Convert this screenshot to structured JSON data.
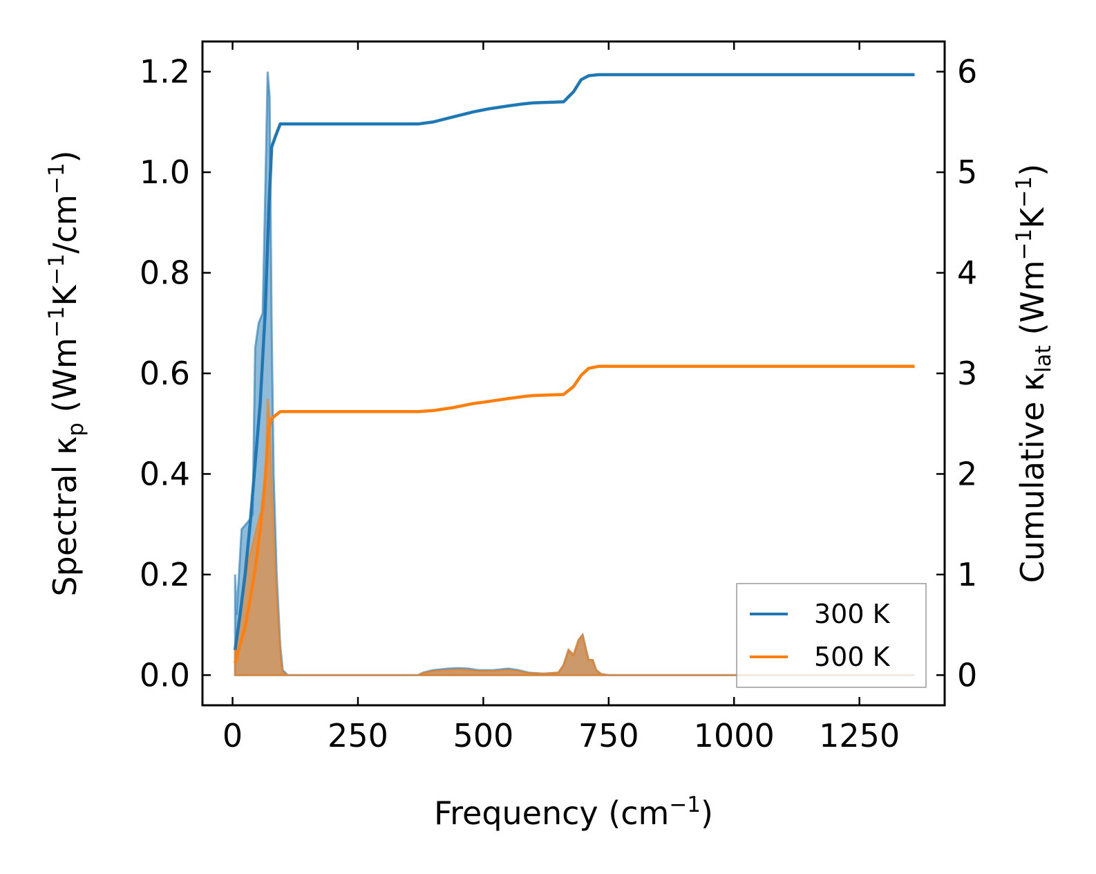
{
  "chart_data": {
    "type": "area",
    "xlabel": "Frequency (cm⁻¹)",
    "ylabel_left": "Spectral κₚ (Wm⁻¹K⁻¹/cm⁻¹)",
    "ylabel_right": "Cumulative κ_lat (Wm⁻¹K⁻¹)",
    "xlim": [
      -60,
      1420
    ],
    "ylim_left": [
      -0.06,
      1.26
    ],
    "ylim_right": [
      -0.3,
      6.3
    ],
    "x_ticks": [
      0,
      250,
      500,
      750,
      1000,
      1250
    ],
    "y_left_ticks": [
      0.0,
      0.2,
      0.4,
      0.6,
      0.8,
      1.0,
      1.2
    ],
    "y_right_ticks": [
      0,
      1,
      2,
      3,
      4,
      5,
      6
    ],
    "legend_position": "lower-right",
    "series": [
      {
        "name": "300 K",
        "color": "#1f77b4",
        "spectral": [
          [
            5,
            0.2
          ],
          [
            8,
            0.12
          ],
          [
            18,
            0.29
          ],
          [
            35,
            0.31
          ],
          [
            40,
            0.32
          ],
          [
            45,
            0.65
          ],
          [
            52,
            0.7
          ],
          [
            60,
            0.72
          ],
          [
            65,
            0.95
          ],
          [
            70,
            1.2
          ],
          [
            74,
            1.15
          ],
          [
            78,
            0.7
          ],
          [
            82,
            0.4
          ],
          [
            88,
            0.2
          ],
          [
            95,
            0.06
          ],
          [
            100,
            0.01
          ],
          [
            110,
            0.0
          ],
          [
            370,
            0.0
          ],
          [
            380,
            0.005
          ],
          [
            400,
            0.01
          ],
          [
            430,
            0.013
          ],
          [
            450,
            0.014
          ],
          [
            470,
            0.013
          ],
          [
            490,
            0.01
          ],
          [
            520,
            0.01
          ],
          [
            550,
            0.013
          ],
          [
            570,
            0.01
          ],
          [
            590,
            0.005
          ],
          [
            620,
            0.003
          ],
          [
            650,
            0.005
          ],
          [
            660,
            0.02
          ],
          [
            670,
            0.05
          ],
          [
            680,
            0.04
          ],
          [
            690,
            0.07
          ],
          [
            698,
            0.08
          ],
          [
            705,
            0.05
          ],
          [
            710,
            0.03
          ],
          [
            718,
            0.03
          ],
          [
            725,
            0.01
          ],
          [
            735,
            0.002
          ],
          [
            750,
            0.0
          ],
          [
            1360,
            0.0
          ]
        ],
        "cumulative": [
          [
            5,
            0.25
          ],
          [
            15,
            0.6
          ],
          [
            25,
            1.0
          ],
          [
            35,
            1.5
          ],
          [
            45,
            2.1
          ],
          [
            55,
            2.7
          ],
          [
            65,
            3.6
          ],
          [
            72,
            4.6
          ],
          [
            78,
            5.25
          ],
          [
            85,
            5.35
          ],
          [
            95,
            5.48
          ],
          [
            110,
            5.48
          ],
          [
            370,
            5.48
          ],
          [
            400,
            5.5
          ],
          [
            440,
            5.55
          ],
          [
            480,
            5.6
          ],
          [
            510,
            5.63
          ],
          [
            550,
            5.66
          ],
          [
            580,
            5.68
          ],
          [
            600,
            5.69
          ],
          [
            660,
            5.7
          ],
          [
            670,
            5.75
          ],
          [
            680,
            5.8
          ],
          [
            695,
            5.92
          ],
          [
            710,
            5.96
          ],
          [
            730,
            5.97
          ],
          [
            1000,
            5.97
          ],
          [
            1360,
            5.97
          ]
        ]
      },
      {
        "name": "500 K",
        "color": "#ff7f0e",
        "spectral": [
          [
            5,
            0.06
          ],
          [
            10,
            0.08
          ],
          [
            15,
            0.12
          ],
          [
            20,
            0.16
          ],
          [
            30,
            0.22
          ],
          [
            45,
            0.28
          ],
          [
            55,
            0.32
          ],
          [
            62,
            0.33
          ],
          [
            66,
            0.4
          ],
          [
            70,
            0.55
          ],
          [
            74,
            0.5
          ],
          [
            78,
            0.38
          ],
          [
            83,
            0.25
          ],
          [
            90,
            0.12
          ],
          [
            96,
            0.03
          ],
          [
            100,
            0.005
          ],
          [
            110,
            0.0
          ],
          [
            370,
            0.0
          ],
          [
            380,
            0.004
          ],
          [
            400,
            0.008
          ],
          [
            430,
            0.01
          ],
          [
            450,
            0.011
          ],
          [
            470,
            0.01
          ],
          [
            490,
            0.008
          ],
          [
            520,
            0.008
          ],
          [
            550,
            0.01
          ],
          [
            570,
            0.008
          ],
          [
            590,
            0.004
          ],
          [
            620,
            0.003
          ],
          [
            650,
            0.005
          ],
          [
            660,
            0.02
          ],
          [
            670,
            0.05
          ],
          [
            680,
            0.04
          ],
          [
            690,
            0.07
          ],
          [
            698,
            0.08
          ],
          [
            705,
            0.05
          ],
          [
            710,
            0.03
          ],
          [
            718,
            0.03
          ],
          [
            725,
            0.01
          ],
          [
            735,
            0.002
          ],
          [
            750,
            0.0
          ],
          [
            1360,
            0.0
          ]
        ],
        "cumulative": [
          [
            5,
            0.12
          ],
          [
            15,
            0.3
          ],
          [
            25,
            0.48
          ],
          [
            35,
            0.75
          ],
          [
            45,
            1.05
          ],
          [
            55,
            1.45
          ],
          [
            65,
            1.95
          ],
          [
            72,
            2.45
          ],
          [
            78,
            2.55
          ],
          [
            85,
            2.58
          ],
          [
            95,
            2.62
          ],
          [
            110,
            2.62
          ],
          [
            370,
            2.62
          ],
          [
            400,
            2.63
          ],
          [
            440,
            2.66
          ],
          [
            480,
            2.7
          ],
          [
            510,
            2.72
          ],
          [
            550,
            2.75
          ],
          [
            580,
            2.77
          ],
          [
            600,
            2.78
          ],
          [
            660,
            2.79
          ],
          [
            670,
            2.83
          ],
          [
            680,
            2.87
          ],
          [
            695,
            2.98
          ],
          [
            710,
            3.05
          ],
          [
            730,
            3.07
          ],
          [
            1000,
            3.07
          ],
          [
            1360,
            3.07
          ]
        ]
      }
    ]
  }
}
